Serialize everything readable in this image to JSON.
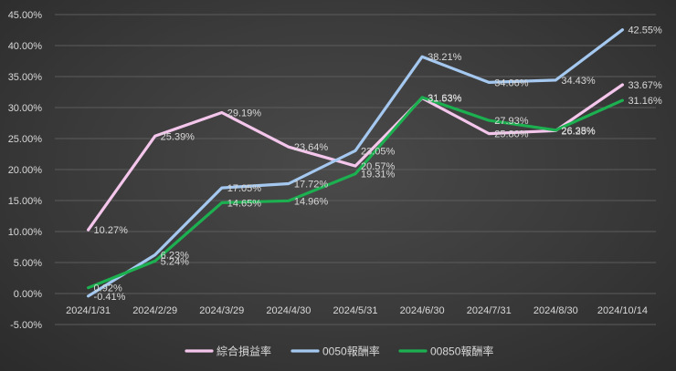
{
  "chart_data": {
    "type": "line",
    "categories": [
      "2024/1/31",
      "2024/2/29",
      "2024/3/29",
      "2024/4/30",
      "2024/5/31",
      "2024/6/30",
      "2024/7/31",
      "2024/8/30",
      "2024/10/14"
    ],
    "ylim": [
      -5,
      45
    ],
    "yticks": [
      -5,
      0,
      5,
      10,
      15,
      20,
      25,
      30,
      35,
      40,
      45
    ],
    "ytick_labels": [
      "-5.00%",
      "0.00%",
      "5.00%",
      "10.00%",
      "15.00%",
      "20.00%",
      "25.00%",
      "30.00%",
      "35.00%",
      "40.00%",
      "45.00%"
    ],
    "grid": true,
    "legend_position": "bottom",
    "series": [
      {
        "name": "綜合損益率",
        "color": "#f4c6ec",
        "values": [
          10.27,
          25.39,
          29.19,
          23.64,
          20.57,
          31.53,
          25.8,
          26.28,
          33.67
        ],
        "labels": [
          "10.27%",
          "25.39%",
          "29.19%",
          "23.64%",
          "20.57%",
          "31.53%",
          "25.80%",
          "26.28%",
          "33.67%"
        ]
      },
      {
        "name": "0050報酬率",
        "color": "#a4c8ef",
        "values": [
          -0.41,
          6.23,
          17.05,
          17.72,
          23.05,
          38.21,
          34.06,
          34.43,
          42.55
        ],
        "labels": [
          "-0.41%",
          "6.23%",
          "17.05%",
          "17.72%",
          "23.05%",
          "38.21%",
          "34.06%",
          "34.43%",
          "42.55%"
        ]
      },
      {
        "name": "00850報酬率",
        "color": "#1cb050",
        "values": [
          0.92,
          5.24,
          14.65,
          14.96,
          19.31,
          31.63,
          27.93,
          26.35,
          31.16
        ],
        "labels": [
          "0.92%",
          "5.24%",
          "14.65%",
          "14.96%",
          "19.31%",
          "31.63%",
          "27.93%",
          "26.35%",
          "31.16%"
        ]
      }
    ]
  }
}
